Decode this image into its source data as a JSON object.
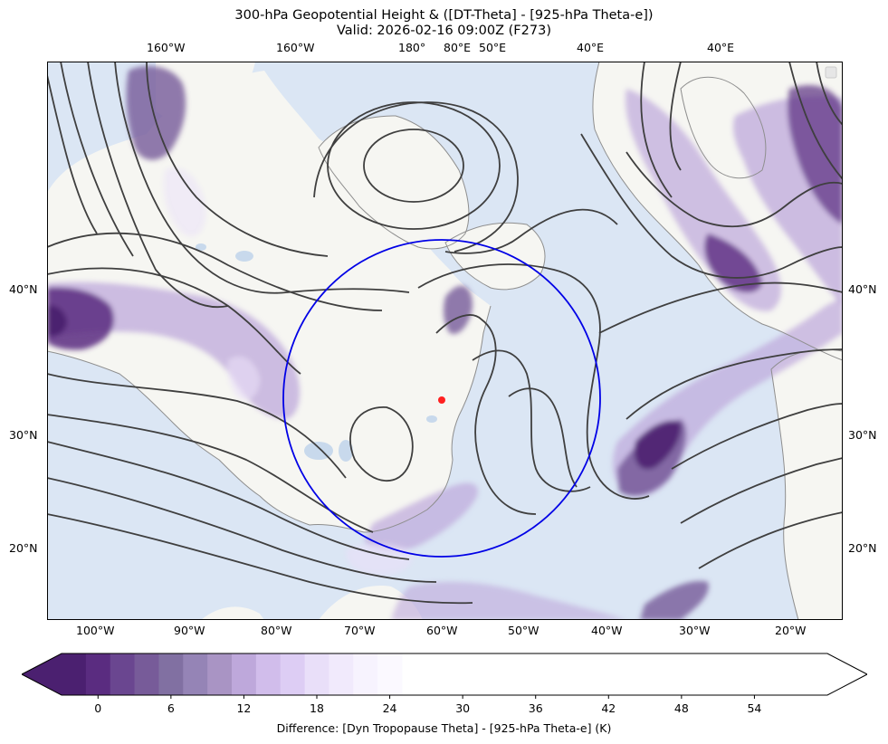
{
  "title": {
    "line1": "300-hPa Geopotential Height & ([DT-Theta] - [925-hPa Theta-e])",
    "line2": "Valid: 2026-02-16 09:00Z (F273)"
  },
  "colors": {
    "ocean": "#dbe6f4",
    "land": "#f6f6f2",
    "lake": "#c8d9ec",
    "coast": "#8e8e8e",
    "contour": "#3f3f3f",
    "ring": "#0000e6",
    "marker": "#ff2020",
    "shade_dark": "#4b2070",
    "shade_light": "#f4efff"
  },
  "map": {
    "lon_top_labels": [
      "160°W",
      "160°W",
      "180°",
      "80°E",
      "50°E",
      "40°E",
      "40°E"
    ],
    "lon_bottom_labels": [
      "100°W",
      "90°W",
      "80°W",
      "70°W",
      "60°W",
      "50°W",
      "40°W",
      "30°W",
      "20°W"
    ],
    "lat_left_labels": [
      "40°N",
      "30°N",
      "20°N"
    ],
    "lat_right_labels": [
      "40°N",
      "30°N",
      "20°N"
    ],
    "marker_label": "",
    "icons": [
      "legend-box-icon"
    ]
  },
  "colorbar": {
    "ticks": [
      "0",
      "6",
      "12",
      "18",
      "24",
      "30",
      "36",
      "42",
      "48",
      "54"
    ],
    "label": "Difference: [Dyn Tropopause Theta] - [925-hPa Theta-e] (K)",
    "levels_min": -3,
    "levels_max": 60,
    "step": 2,
    "colors": [
      "#4b2070",
      "#5a2c80",
      "#6a4690",
      "#775b99",
      "#8170a2",
      "#9584b6",
      "#a994c4",
      "#bea8db",
      "#d1bdeb",
      "#ddcdf4",
      "#e9dff9",
      "#f1eafc",
      "#f7f3fe",
      "#fbf9ff"
    ]
  }
}
